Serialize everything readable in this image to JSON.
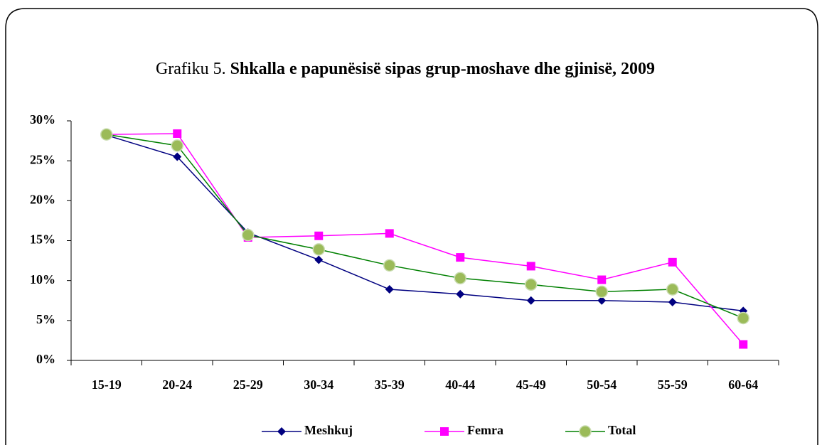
{
  "chart_data": {
    "type": "line",
    "title_label": "Grafiku 5.",
    "title": "Shkalla e papunësisë sipas grup-moshave dhe gjinisë, 2009",
    "categories": [
      "15-19",
      "20-24",
      "25-29",
      "30-34",
      "35-39",
      "40-44",
      "45-49",
      "50-54",
      "55-59",
      "60-64"
    ],
    "series": [
      {
        "name": "Meshkuj",
        "color": "#000080",
        "marker": "diamond",
        "values": [
          28.2,
          25.5,
          16.0,
          12.6,
          8.9,
          8.3,
          7.5,
          7.5,
          7.3,
          6.2
        ]
      },
      {
        "name": "Femra",
        "color": "#ff00ff",
        "marker": "square",
        "values": [
          28.3,
          28.4,
          15.4,
          15.6,
          15.9,
          12.9,
          11.8,
          10.1,
          12.3,
          2.0
        ]
      },
      {
        "name": "Total",
        "color": "#008000",
        "marker": "circle",
        "marker_color": "#9bbb59",
        "values": [
          28.3,
          26.9,
          15.7,
          13.9,
          11.9,
          10.3,
          9.5,
          8.6,
          8.9,
          5.3
        ]
      }
    ],
    "ylim": [
      0,
      30
    ],
    "yticks": [
      {
        "value": 0,
        "label": "0%"
      },
      {
        "value": 5,
        "label": "5%"
      },
      {
        "value": 10,
        "label": "10%"
      },
      {
        "value": 15,
        "label": "15%"
      },
      {
        "value": 20,
        "label": "20%"
      },
      {
        "value": 25,
        "label": "25%"
      },
      {
        "value": 30,
        "label": "30%"
      }
    ],
    "grid": false,
    "legend": "bottom"
  }
}
